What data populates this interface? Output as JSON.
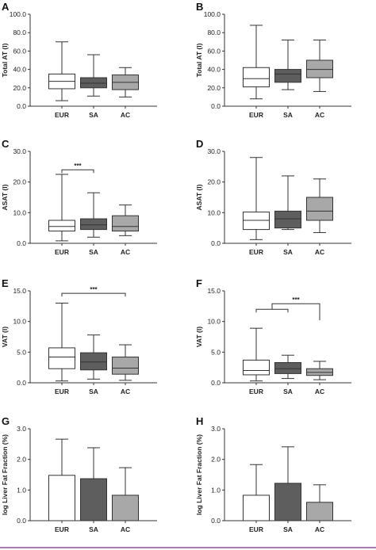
{
  "colors": {
    "EUR": "#ffffff",
    "SA": "#5e5e5e",
    "AC": "#a8a8a8",
    "stroke": "#333333",
    "bottom_rule": "#8b4a9c"
  },
  "chart_data": [
    {
      "panel": "A",
      "type": "box",
      "ylabel": "Total AT (l)",
      "ylim": [
        0,
        100
      ],
      "yticks": [
        "0.0",
        "20.0",
        "40.0",
        "60.0",
        "80.0",
        "100.0"
      ],
      "ytick_values": [
        0,
        20,
        40,
        60,
        80,
        100
      ],
      "categories": [
        "EUR",
        "SA",
        "AC"
      ],
      "series": [
        {
          "category": "EUR",
          "min": 6,
          "q1": 19,
          "median": 27,
          "q3": 35,
          "max": 70
        },
        {
          "category": "SA",
          "min": 11,
          "q1": 20,
          "median": 25,
          "q3": 31,
          "max": 56
        },
        {
          "category": "AC",
          "min": 10,
          "q1": 18,
          "median": 26,
          "q3": 34,
          "max": 42
        }
      ],
      "significance": []
    },
    {
      "panel": "B",
      "type": "box",
      "ylabel": "Total AT (l)",
      "ylim": [
        0,
        100
      ],
      "yticks": [
        "0.0",
        "20.0",
        "40.0",
        "60.0",
        "80.0",
        "100.0"
      ],
      "ytick_values": [
        0,
        20,
        40,
        60,
        80,
        100
      ],
      "categories": [
        "EUR",
        "SA",
        "AC"
      ],
      "series": [
        {
          "category": "EUR",
          "min": 8,
          "q1": 21,
          "median": 30,
          "q3": 42,
          "max": 88
        },
        {
          "category": "SA",
          "min": 18,
          "q1": 26,
          "median": 35,
          "q3": 40,
          "max": 72
        },
        {
          "category": "AC",
          "min": 16,
          "q1": 31,
          "median": 40,
          "q3": 50,
          "max": 72
        }
      ],
      "significance": []
    },
    {
      "panel": "C",
      "type": "box",
      "ylabel": "ASAT (l)",
      "ylim": [
        0,
        30
      ],
      "yticks": [
        "0.0",
        "10.0",
        "20.0",
        "30.0"
      ],
      "ytick_values": [
        0,
        10,
        20,
        30
      ],
      "categories": [
        "EUR",
        "SA",
        "AC"
      ],
      "series": [
        {
          "category": "EUR",
          "min": 0.8,
          "q1": 4.0,
          "median": 5.5,
          "q3": 7.5,
          "max": 22.5
        },
        {
          "category": "SA",
          "min": 2.0,
          "q1": 4.5,
          "median": 6.0,
          "q3": 8.0,
          "max": 16.5
        },
        {
          "category": "AC",
          "min": 2.5,
          "q1": 4.0,
          "median": 5.5,
          "q3": 9.0,
          "max": 12.5
        }
      ],
      "significance": [
        {
          "label": "***",
          "from": "EUR",
          "to": "SA",
          "y": 24
        }
      ]
    },
    {
      "panel": "D",
      "type": "box",
      "ylabel": "ASAT (l)",
      "ylim": [
        0,
        30
      ],
      "yticks": [
        "0.0",
        "10.0",
        "20.0",
        "30.0"
      ],
      "ytick_values": [
        0,
        10,
        20,
        30
      ],
      "categories": [
        "EUR",
        "SA",
        "AC"
      ],
      "series": [
        {
          "category": "EUR",
          "min": 1.2,
          "q1": 4.5,
          "median": 7.5,
          "q3": 10.2,
          "max": 28.0
        },
        {
          "category": "SA",
          "min": 4.5,
          "q1": 5.0,
          "median": 8.0,
          "q3": 10.5,
          "max": 22.0
        },
        {
          "category": "AC",
          "min": 3.5,
          "q1": 7.5,
          "median": 10.5,
          "q3": 15.0,
          "max": 21.0
        }
      ],
      "significance": []
    },
    {
      "panel": "E",
      "type": "box",
      "ylabel": "VAT (l)",
      "ylim": [
        0,
        15
      ],
      "yticks": [
        "0.0",
        "5.0",
        "10.0",
        "15.0"
      ],
      "ytick_values": [
        0,
        5,
        10,
        15
      ],
      "categories": [
        "EUR",
        "SA",
        "AC"
      ],
      "series": [
        {
          "category": "EUR",
          "min": 0.3,
          "q1": 2.3,
          "median": 4.2,
          "q3": 5.7,
          "max": 13.0
        },
        {
          "category": "SA",
          "min": 0.6,
          "q1": 2.1,
          "median": 3.4,
          "q3": 4.9,
          "max": 7.8
        },
        {
          "category": "AC",
          "min": 0.4,
          "q1": 1.4,
          "median": 2.4,
          "q3": 4.2,
          "max": 6.2
        }
      ],
      "significance": [
        {
          "label": "***",
          "from": "EUR",
          "to": "AC",
          "y": 14.6
        }
      ]
    },
    {
      "panel": "F",
      "type": "box",
      "ylabel": "VAT (l)",
      "ylim": [
        0,
        15
      ],
      "yticks": [
        "0.0",
        "5.0",
        "10.0",
        "15.0"
      ],
      "ytick_values": [
        0,
        5,
        10,
        15
      ],
      "categories": [
        "EUR",
        "SA",
        "AC"
      ],
      "series": [
        {
          "category": "EUR",
          "min": 0.3,
          "q1": 1.3,
          "median": 2.0,
          "q3": 3.7,
          "max": 8.9
        },
        {
          "category": "SA",
          "min": 0.7,
          "q1": 1.5,
          "median": 2.3,
          "q3": 3.3,
          "max": 4.5
        },
        {
          "category": "AC",
          "min": 0.5,
          "q1": 1.2,
          "median": 1.7,
          "q3": 2.3,
          "max": 3.5
        }
      ],
      "significance": [
        {
          "label": "***",
          "from": "EUR+SA",
          "to": "AC",
          "y": 12.9,
          "inner_y": 12.0,
          "drop_to": 10.2
        }
      ]
    },
    {
      "panel": "G",
      "type": "bar",
      "ylabel": "log Liver Fat Fraction (%)",
      "ylim": [
        0,
        3
      ],
      "yticks": [
        "0.0",
        "1.0",
        "2.0",
        "3.0"
      ],
      "ytick_values": [
        0,
        1,
        2,
        3
      ],
      "categories": [
        "EUR",
        "SA",
        "AC"
      ],
      "values": [
        1.48,
        1.37,
        0.83
      ],
      "errors": [
        2.66,
        2.38,
        1.73
      ],
      "significance": []
    },
    {
      "panel": "H",
      "type": "bar",
      "ylabel": "log Liver Fat Fraction (%)",
      "ylim": [
        0,
        3
      ],
      "yticks": [
        "0.0",
        "1.0",
        "2.0",
        "3.0"
      ],
      "ytick_values": [
        0,
        1,
        2,
        3
      ],
      "categories": [
        "EUR",
        "SA",
        "AC"
      ],
      "values": [
        0.83,
        1.22,
        0.6
      ],
      "errors": [
        1.83,
        2.41,
        1.17
      ],
      "significance": []
    }
  ]
}
